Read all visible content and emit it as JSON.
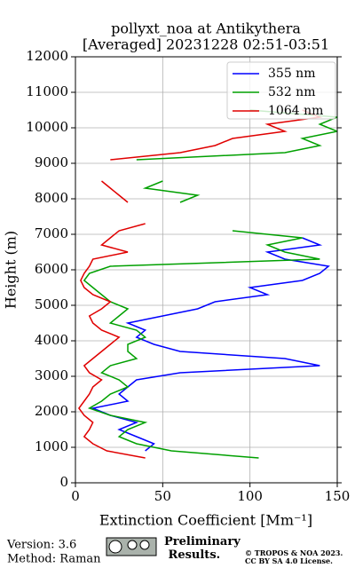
{
  "chart_data": {
    "type": "line",
    "title": "pollyxt_noa at Antikythera",
    "subtitle": "[Averaged] 20231228 02:51-03:51",
    "xlabel": "Extinction Coefficient [Mm⁻¹]",
    "ylabel": "Height (m)",
    "xlim": [
      0,
      150
    ],
    "ylim": [
      0,
      12000
    ],
    "xticks": [
      0,
      50,
      100,
      150
    ],
    "yticks": [
      0,
      1000,
      2000,
      3000,
      4000,
      5000,
      6000,
      7000,
      8000,
      9000,
      10000,
      11000,
      12000
    ],
    "grid": true,
    "legend": "upper right",
    "y": [
      700,
      900,
      1100,
      1300,
      1500,
      1700,
      1900,
      2100,
      2300,
      2500,
      2700,
      2900,
      3100,
      3300,
      3500,
      3700,
      3900,
      4100,
      4300,
      4500,
      4700,
      4900,
      5100,
      5300,
      5500,
      5700,
      5900,
      6100,
      6300,
      6500,
      6700,
      6900,
      7100,
      7300,
      7500,
      7700,
      7900,
      8100,
      8300,
      8500,
      8700,
      8900,
      9100,
      9300,
      9500,
      9700,
      9900,
      10100,
      10300,
      10500
    ],
    "series": [
      {
        "name": "355 nm",
        "color": "#0000ff",
        "values": [
          null,
          40,
          45,
          35,
          25,
          35,
          20,
          10,
          30,
          25,
          30,
          35,
          60,
          140,
          120,
          60,
          45,
          35,
          40,
          30,
          50,
          70,
          80,
          110,
          100,
          130,
          140,
          145,
          120,
          110,
          140,
          130,
          null,
          null,
          null,
          null,
          null,
          null,
          null,
          null,
          null,
          null,
          null,
          null,
          null,
          null,
          null,
          null,
          null,
          null
        ]
      },
      {
        "name": "532 nm",
        "color": "#00a000",
        "values": [
          105,
          55,
          35,
          25,
          30,
          40,
          20,
          8,
          15,
          20,
          30,
          25,
          15,
          20,
          35,
          30,
          30,
          40,
          35,
          20,
          25,
          30,
          20,
          15,
          10,
          5,
          8,
          20,
          140,
          120,
          110,
          130,
          90,
          null,
          null,
          null,
          60,
          70,
          40,
          50,
          null,
          null,
          35,
          120,
          140,
          130,
          150,
          140,
          150,
          100
        ]
      },
      {
        "name": "1064 nm",
        "color": "#e00000",
        "values": [
          40,
          18,
          10,
          5,
          8,
          10,
          5,
          2,
          5,
          8,
          10,
          15,
          8,
          5,
          10,
          15,
          20,
          25,
          15,
          10,
          8,
          15,
          20,
          10,
          5,
          3,
          5,
          8,
          10,
          30,
          15,
          20,
          25,
          40,
          null,
          null,
          30,
          25,
          20,
          15,
          null,
          null,
          20,
          60,
          80,
          90,
          120,
          110,
          140,
          130
        ]
      }
    ],
    "footer": {
      "version": "Version: 3.6",
      "method": "Method: Raman",
      "status": "Preliminary Results.",
      "copyright": "© TROPOS & NOA 2023.",
      "license": "CC BY SA 4.0 License."
    }
  }
}
